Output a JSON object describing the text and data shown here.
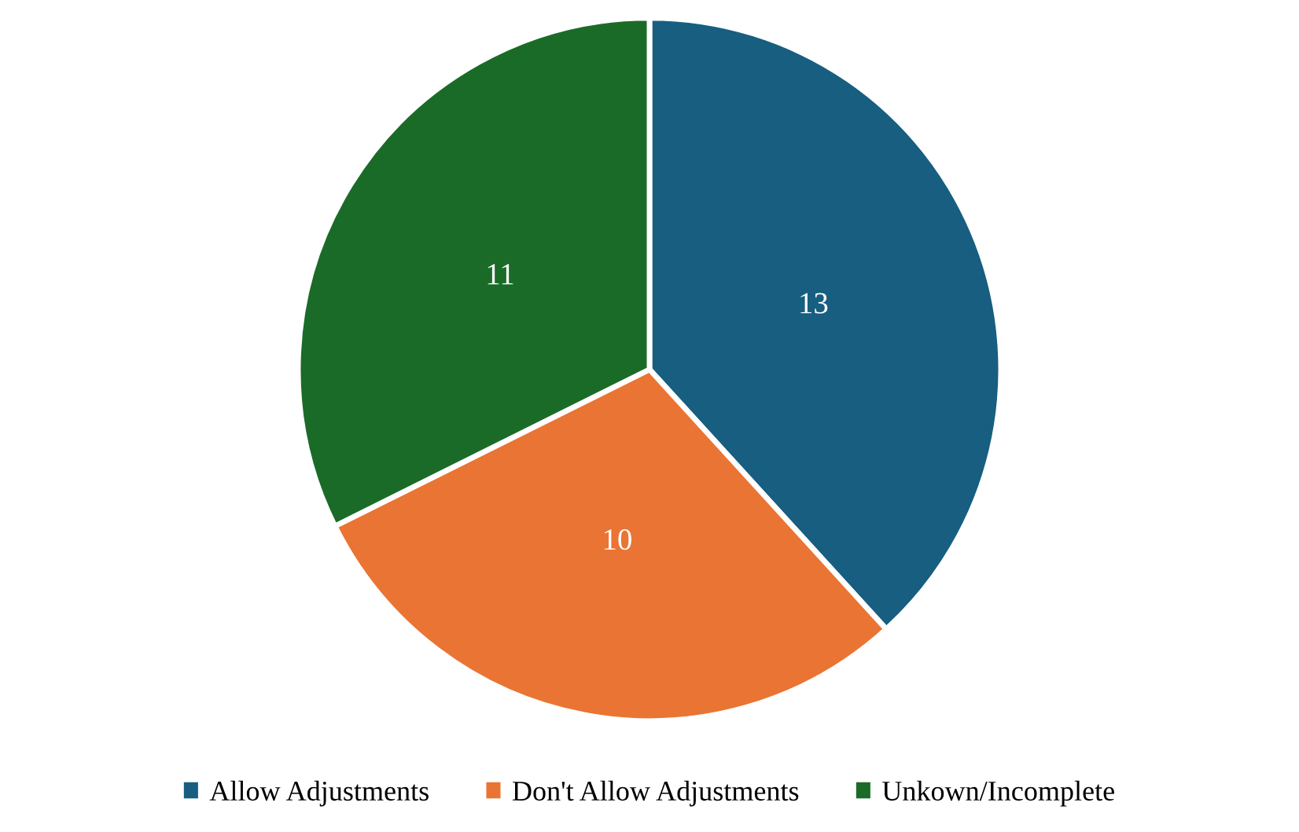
{
  "chart_data": {
    "type": "pie",
    "categories": [
      "Allow Adjustments",
      "Don't Allow Adjustments",
      "Unkown/Incomplete"
    ],
    "values": [
      13,
      10,
      11
    ],
    "colors": [
      "#175e80",
      "#ea7433",
      "#1b6b28"
    ],
    "data_labels": true,
    "legend": "bottom"
  }
}
